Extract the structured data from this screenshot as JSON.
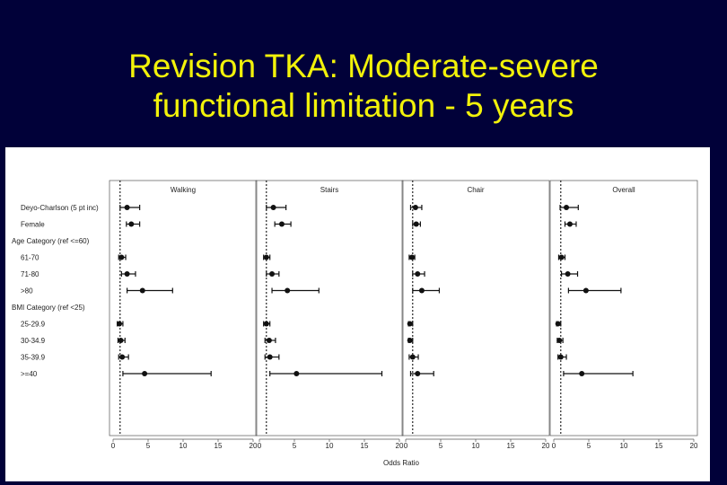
{
  "slide": {
    "title_line1": "Revision TKA: Moderate-severe",
    "title_line2": "functional limitation - 5 years"
  },
  "colors": {
    "background": "#010139",
    "title": "#f2f20a",
    "panel": "#ffffff",
    "ink": "#111111"
  },
  "chart_data": {
    "type": "forest",
    "xlabel": "Odds Ratio",
    "xlim": [
      0,
      20
    ],
    "xticks": [
      0,
      5,
      10,
      15,
      20
    ],
    "reference_line": 1,
    "panels": [
      "Walking",
      "Stairs",
      "Chair",
      "Overall"
    ],
    "rows": [
      {
        "label": "Deyo-Charlson (5 pt inc)",
        "kind": "item"
      },
      {
        "label": "Female",
        "kind": "item"
      },
      {
        "label": "Age Category (ref <=60)",
        "kind": "header"
      },
      {
        "label": "61-70",
        "kind": "item"
      },
      {
        "label": "71-80",
        "kind": "item"
      },
      {
        "label": ">80",
        "kind": "item"
      },
      {
        "label": "BMI Category (ref <25)",
        "kind": "header"
      },
      {
        "label": "25-29.9",
        "kind": "item"
      },
      {
        "label": "30-34.9",
        "kind": "item"
      },
      {
        "label": "35-39.9",
        "kind": "item"
      },
      {
        "label": ">=40",
        "kind": "item"
      }
    ],
    "series": [
      {
        "name": "Walking",
        "estimates": [
          {
            "row": "Deyo-Charlson (5 pt inc)",
            "or": 2.0,
            "lo": 1.0,
            "hi": 3.8
          },
          {
            "row": "Female",
            "or": 2.6,
            "lo": 1.9,
            "hi": 3.8
          },
          {
            "row": "61-70",
            "or": 1.2,
            "lo": 0.8,
            "hi": 1.8
          },
          {
            "row": "71-80",
            "or": 2.0,
            "lo": 1.2,
            "hi": 3.2
          },
          {
            "row": ">80",
            "or": 4.2,
            "lo": 2.0,
            "hi": 8.5
          },
          {
            "row": "25-29.9",
            "or": 0.9,
            "lo": 0.6,
            "hi": 1.4
          },
          {
            "row": "30-34.9",
            "or": 1.1,
            "lo": 0.7,
            "hi": 1.7
          },
          {
            "row": "35-39.9",
            "or": 1.3,
            "lo": 0.8,
            "hi": 2.2
          },
          {
            "row": ">=40",
            "or": 4.5,
            "lo": 1.4,
            "hi": 14.0
          }
        ]
      },
      {
        "name": "Stairs",
        "estimates": [
          {
            "row": "Deyo-Charlson (5 pt inc)",
            "or": 2.0,
            "lo": 1.0,
            "hi": 3.8
          },
          {
            "row": "Female",
            "or": 3.2,
            "lo": 2.2,
            "hi": 4.5
          },
          {
            "row": "61-70",
            "or": 1.0,
            "lo": 0.6,
            "hi": 1.5
          },
          {
            "row": "71-80",
            "or": 1.8,
            "lo": 1.0,
            "hi": 2.8
          },
          {
            "row": ">80",
            "or": 4.0,
            "lo": 1.8,
            "hi": 8.5
          },
          {
            "row": "25-29.9",
            "or": 1.0,
            "lo": 0.6,
            "hi": 1.5
          },
          {
            "row": "30-34.9",
            "or": 1.4,
            "lo": 0.8,
            "hi": 2.3
          },
          {
            "row": "35-39.9",
            "or": 1.5,
            "lo": 0.8,
            "hi": 2.8
          },
          {
            "row": ">=40",
            "or": 5.3,
            "lo": 1.5,
            "hi": 17.5
          }
        ]
      },
      {
        "name": "Chair",
        "estimates": [
          {
            "row": "Deyo-Charlson (5 pt inc)",
            "or": 1.4,
            "lo": 0.7,
            "hi": 2.3
          },
          {
            "row": "Female",
            "or": 1.5,
            "lo": 1.0,
            "hi": 2.1
          },
          {
            "row": "61-70",
            "or": 0.9,
            "lo": 0.5,
            "hi": 1.3
          },
          {
            "row": "71-80",
            "or": 1.7,
            "lo": 1.0,
            "hi": 2.7
          },
          {
            "row": ">80",
            "or": 2.3,
            "lo": 1.0,
            "hi": 4.8
          },
          {
            "row": "25-29.9",
            "or": 0.6,
            "lo": 0.4,
            "hi": 1.0
          },
          {
            "row": "30-34.9",
            "or": 0.6,
            "lo": 0.4,
            "hi": 1.0
          },
          {
            "row": "35-39.9",
            "or": 1.0,
            "lo": 0.5,
            "hi": 1.8
          },
          {
            "row": ">=40",
            "or": 1.7,
            "lo": 0.7,
            "hi": 4.0
          }
        ]
      },
      {
        "name": "Overall",
        "estimates": [
          {
            "row": "Deyo-Charlson (5 pt inc)",
            "or": 1.8,
            "lo": 0.9,
            "hi": 3.5
          },
          {
            "row": "Female",
            "or": 2.3,
            "lo": 1.6,
            "hi": 3.2
          },
          {
            "row": "61-70",
            "or": 1.1,
            "lo": 0.7,
            "hi": 1.6
          },
          {
            "row": "71-80",
            "or": 2.0,
            "lo": 1.1,
            "hi": 3.4
          },
          {
            "row": ">80",
            "or": 4.6,
            "lo": 2.1,
            "hi": 9.6
          },
          {
            "row": "25-29.9",
            "or": 0.6,
            "lo": 0.4,
            "hi": 1.0
          },
          {
            "row": "30-34.9",
            "or": 0.8,
            "lo": 0.5,
            "hi": 1.3
          },
          {
            "row": "35-39.9",
            "or": 1.0,
            "lo": 0.6,
            "hi": 1.8
          },
          {
            "row": ">=40",
            "or": 4.0,
            "lo": 1.4,
            "hi": 11.3
          }
        ]
      }
    ]
  }
}
